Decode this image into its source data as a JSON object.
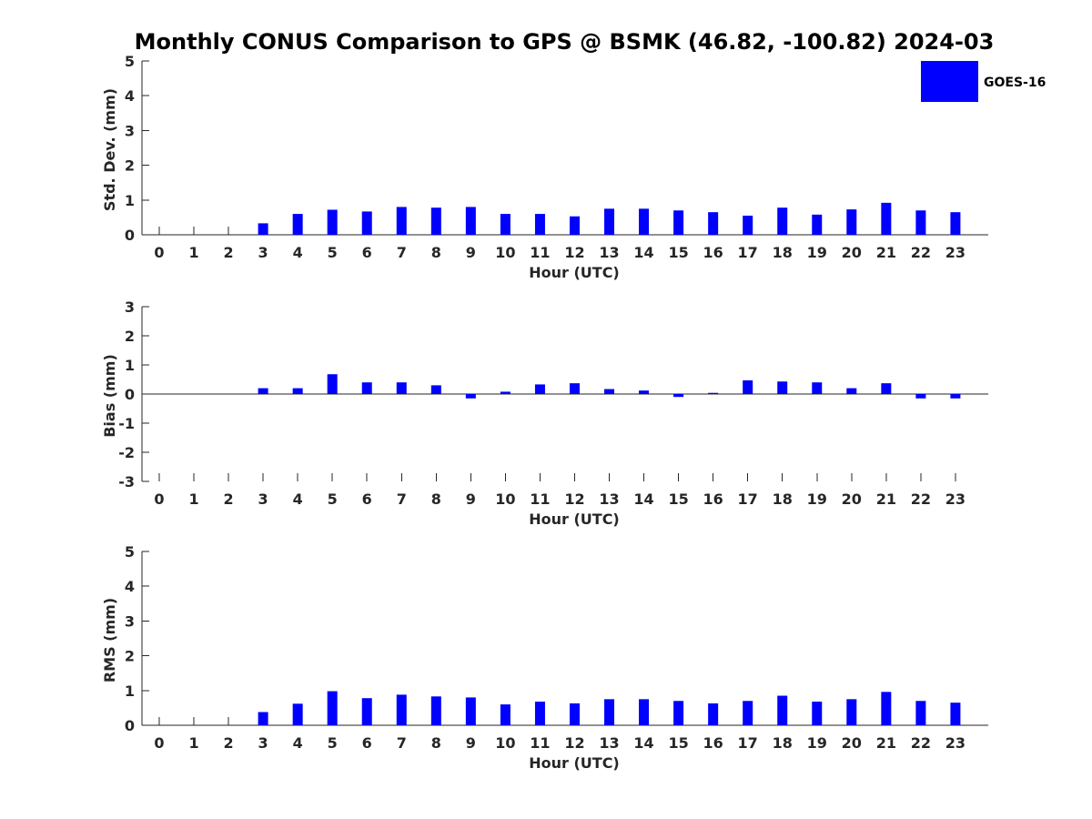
{
  "title": "Monthly CONUS Comparison to GPS @ BSMK (46.82, -100.82) 2024-03",
  "legend": {
    "label": "GOES-16",
    "placement": "top-right"
  },
  "colors": {
    "bar": "#0000ff",
    "axis": "#262626",
    "title": "#000000",
    "background": "#ffffff"
  },
  "chart_data": [
    {
      "type": "bar",
      "title": "Monthly CONUS Comparison to GPS @ BSMK (46.82, -100.82) 2024-03",
      "xlabel": "Hour (UTC)",
      "ylabel": "Std. Dev. (mm)",
      "categories": [
        "0",
        "1",
        "2",
        "3",
        "4",
        "5",
        "6",
        "7",
        "8",
        "9",
        "10",
        "11",
        "12",
        "13",
        "14",
        "15",
        "16",
        "17",
        "18",
        "19",
        "20",
        "21",
        "22",
        "23"
      ],
      "ylim": [
        0,
        5
      ],
      "yticks": [
        "0",
        "1",
        "2",
        "3",
        "4",
        "5"
      ],
      "grid": false,
      "legend": "top-right",
      "series": [
        {
          "name": "GOES-16",
          "values": [
            null,
            null,
            null,
            0.33,
            0.6,
            0.72,
            0.67,
            0.8,
            0.78,
            0.8,
            0.6,
            0.6,
            0.53,
            0.75,
            0.75,
            0.7,
            0.65,
            0.55,
            0.78,
            0.58,
            0.73,
            0.92,
            0.7,
            0.65
          ]
        }
      ]
    },
    {
      "type": "bar",
      "xlabel": "Hour (UTC)",
      "ylabel": "Bias (mm)",
      "categories": [
        "0",
        "1",
        "2",
        "3",
        "4",
        "5",
        "6",
        "7",
        "8",
        "9",
        "10",
        "11",
        "12",
        "13",
        "14",
        "15",
        "16",
        "17",
        "18",
        "19",
        "20",
        "21",
        "22",
        "23"
      ],
      "ylim": [
        -3,
        3
      ],
      "yticks": [
        "-3",
        "-2",
        "-1",
        "0",
        "1",
        "2",
        "3"
      ],
      "grid": false,
      "series": [
        {
          "name": "GOES-16",
          "values": [
            null,
            null,
            null,
            0.2,
            0.2,
            0.68,
            0.4,
            0.4,
            0.3,
            -0.15,
            0.08,
            0.33,
            0.37,
            0.17,
            0.12,
            -0.1,
            0.04,
            0.47,
            0.43,
            0.4,
            0.2,
            0.37,
            -0.15,
            -0.15
          ]
        }
      ]
    },
    {
      "type": "bar",
      "xlabel": "Hour (UTC)",
      "ylabel": "RMS (mm)",
      "categories": [
        "0",
        "1",
        "2",
        "3",
        "4",
        "5",
        "6",
        "7",
        "8",
        "9",
        "10",
        "11",
        "12",
        "13",
        "14",
        "15",
        "16",
        "17",
        "18",
        "19",
        "20",
        "21",
        "22",
        "23"
      ],
      "ylim": [
        0,
        5
      ],
      "yticks": [
        "0",
        "1",
        "2",
        "3",
        "4",
        "5"
      ],
      "grid": false,
      "series": [
        {
          "name": "GOES-16",
          "values": [
            null,
            null,
            null,
            0.38,
            0.62,
            0.98,
            0.78,
            0.88,
            0.83,
            0.8,
            0.6,
            0.68,
            0.63,
            0.75,
            0.75,
            0.7,
            0.63,
            0.7,
            0.85,
            0.68,
            0.75,
            0.96,
            0.7,
            0.65
          ]
        }
      ]
    }
  ]
}
